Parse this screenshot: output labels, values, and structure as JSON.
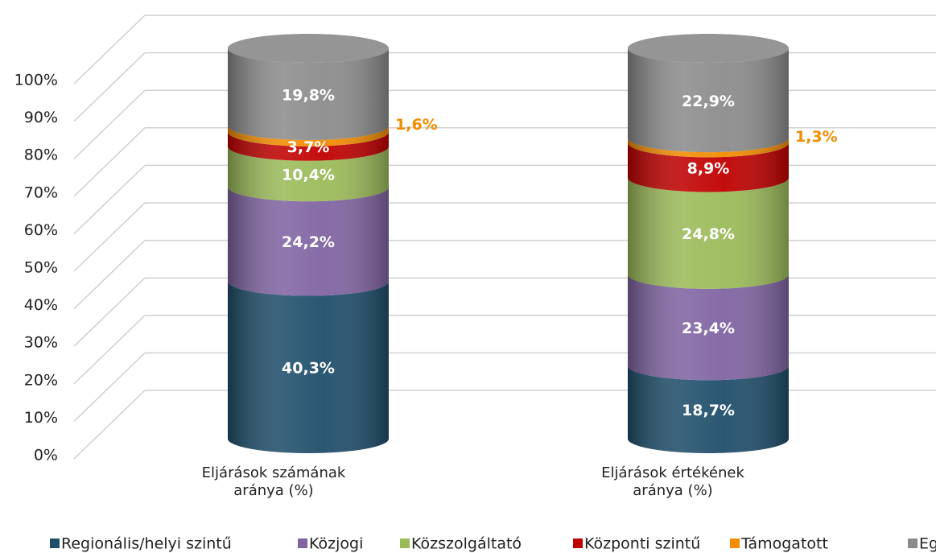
{
  "chart_data": {
    "type": "cylinder_stacked",
    "categories": [
      "Eljárások számának aránya (%)",
      "Eljárások értékének aránya (%)"
    ],
    "series": [
      {
        "name": "Regionális/helyi szintű",
        "color": "#1f4e6b",
        "values": [
          40.3,
          18.7
        ],
        "value_labels": [
          "40,3%",
          "18,7%"
        ]
      },
      {
        "name": "Közjogi",
        "color": "#8064a2",
        "values": [
          24.2,
          23.4
        ],
        "value_labels": [
          "24,2%",
          "23,4%"
        ]
      },
      {
        "name": "Közszolgáltató",
        "color": "#9bbb59",
        "values": [
          10.4,
          24.8
        ],
        "value_labels": [
          "10,4%",
          "24,8%"
        ]
      },
      {
        "name": "Központi szintű",
        "color": "#c00000",
        "values": [
          3.7,
          8.9
        ],
        "value_labels": [
          "3,7%",
          "8,9%"
        ]
      },
      {
        "name": "Támogatott",
        "color": "#f28c00",
        "values": [
          1.6,
          1.3
        ],
        "value_labels": [
          "1,6%",
          "1,3%"
        ]
      },
      {
        "name": "Egy",
        "color": "#8c8c8c",
        "values": [
          19.8,
          22.9
        ],
        "value_labels": [
          "19,8%",
          "22,9%"
        ]
      }
    ],
    "ylim": [
      0,
      100
    ],
    "yticks": [
      {
        "value": 0,
        "label": "0%"
      },
      {
        "value": 10,
        "label": "10%"
      },
      {
        "value": 20,
        "label": "20%"
      },
      {
        "value": 30,
        "label": "30%"
      },
      {
        "value": 40,
        "label": "40%"
      },
      {
        "value": 50,
        "label": "50%"
      },
      {
        "value": 60,
        "label": "60%"
      },
      {
        "value": 70,
        "label": "70%"
      },
      {
        "value": 80,
        "label": "80%"
      },
      {
        "value": 90,
        "label": "90%"
      },
      {
        "value": 100,
        "label": "100%"
      }
    ],
    "grid": true
  }
}
